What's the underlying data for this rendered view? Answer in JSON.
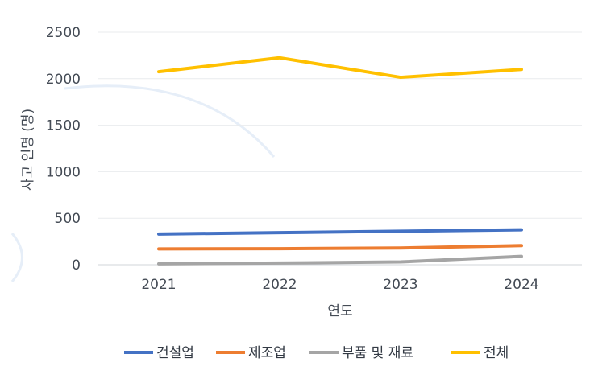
{
  "chart_data": {
    "type": "line",
    "xlabel": "연도",
    "ylabel": "사고 인명 (명)",
    "categories": [
      "2021",
      "2022",
      "2023",
      "2024"
    ],
    "ylim": [
      0,
      2500
    ],
    "yticks": [
      0,
      500,
      1000,
      1500,
      2000,
      2500
    ],
    "grid": true,
    "legend_position": "bottom",
    "series": [
      {
        "name": "건설업",
        "color": "#4472c4",
        "values": [
          330,
          345,
          360,
          375
        ]
      },
      {
        "name": "제조업",
        "color": "#ed7d31",
        "values": [
          170,
          172,
          180,
          205
        ]
      },
      {
        "name": "부품 및 재료",
        "color": "#a5a5a5",
        "values": [
          10,
          18,
          30,
          90
        ]
      },
      {
        "name": "전체",
        "color": "#ffc000",
        "values": [
          2075,
          2225,
          2015,
          2100
        ]
      }
    ]
  }
}
